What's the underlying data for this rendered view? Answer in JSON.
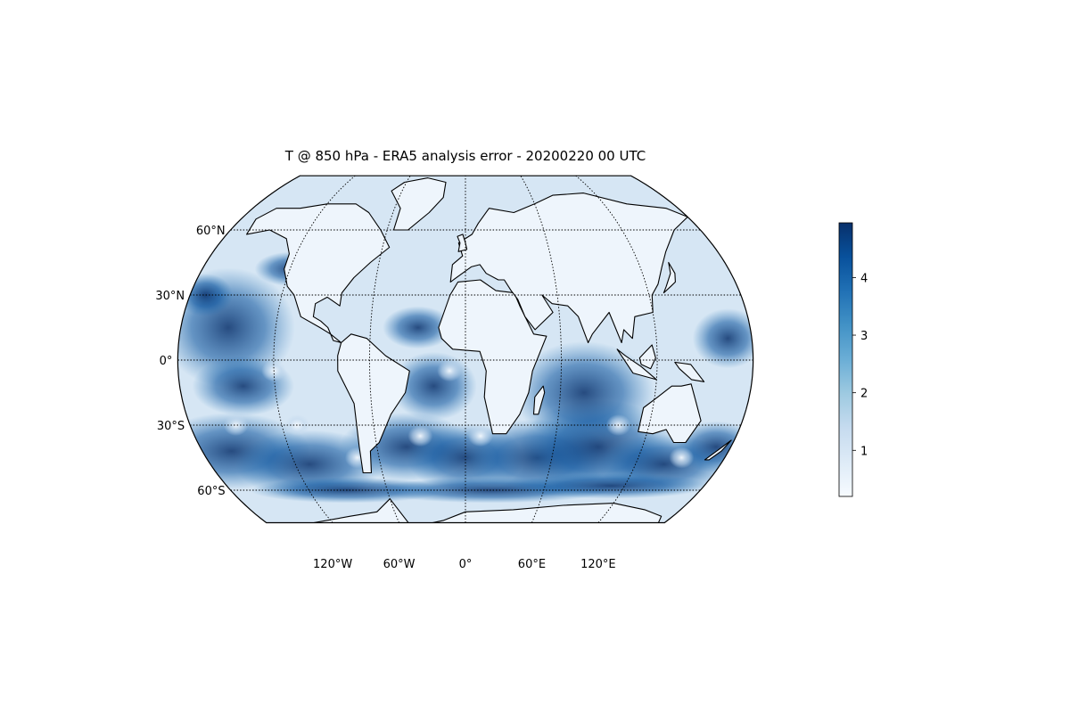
{
  "title": "T @ 850 hPa - ERA5 analysis error - 20200220 00 UTC",
  "map": {
    "projection": "Kavrayskiy VII (global)",
    "field": "temperature analysis error",
    "colormap": "Blues",
    "coastline_color": "#000000",
    "gridline_style": "dotted"
  },
  "lat_labels": [
    {
      "lat": 60,
      "text": "60°N"
    },
    {
      "lat": 30,
      "text": "30°N"
    },
    {
      "lat": 0,
      "text": "0°"
    },
    {
      "lat": -30,
      "text": "30°S"
    },
    {
      "lat": -60,
      "text": "60°S"
    }
  ],
  "lon_labels": [
    {
      "lon": -120,
      "text": "120°W"
    },
    {
      "lon": -60,
      "text": "60°W"
    },
    {
      "lon": 0,
      "text": "0°"
    },
    {
      "lon": 60,
      "text": "60°E"
    },
    {
      "lon": 120,
      "text": "120°E"
    }
  ],
  "colorbar": {
    "min": 0.2,
    "max": 4.95,
    "ticks": [
      {
        "value": 1,
        "text": "1"
      },
      {
        "value": 2,
        "text": "2"
      },
      {
        "value": 3,
        "text": "3"
      },
      {
        "value": 4,
        "text": "4"
      }
    ],
    "colors": [
      "#f7fbff",
      "#deebf7",
      "#c6dbef",
      "#9ecae1",
      "#6baed6",
      "#4292c6",
      "#2171b5",
      "#08519c",
      "#08306b"
    ]
  }
}
